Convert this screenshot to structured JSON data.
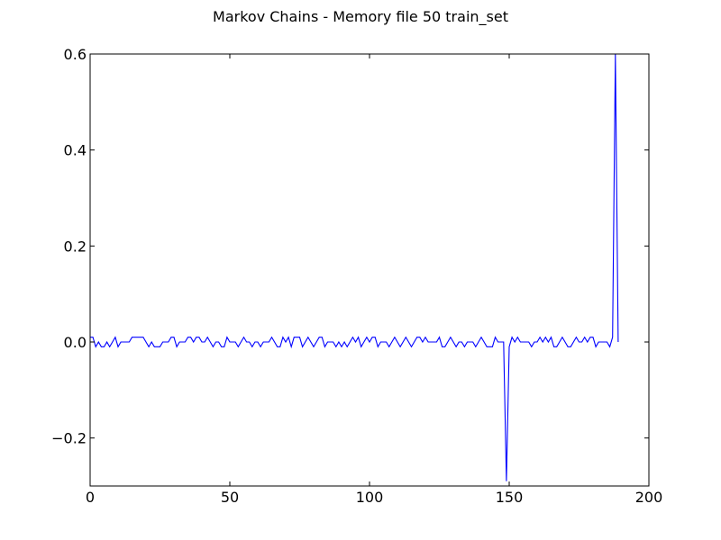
{
  "chart_data": {
    "type": "line",
    "title": "Markov Chains - Memory file 50 train_set",
    "xlabel": "",
    "ylabel": "",
    "xlim": [
      0,
      200
    ],
    "ylim": [
      -0.3,
      0.6
    ],
    "x_ticks": [
      0,
      50,
      100,
      150,
      200
    ],
    "y_ticks": [
      -0.2,
      0.0,
      0.2,
      0.4,
      0.6
    ],
    "x_tick_labels": [
      "0",
      "50",
      "100",
      "150",
      "200"
    ],
    "y_tick_labels": [
      "−0.2",
      "0.0",
      "0.2",
      "0.4",
      "0.6"
    ],
    "grid": false,
    "legend": "none",
    "colors": {
      "line": "#0000ff",
      "axes": "#000000",
      "background": "#ffffff"
    },
    "series": [
      {
        "values": [
          0.01,
          0.01,
          -0.01,
          0,
          -0.01,
          -0.01,
          0,
          -0.01,
          0,
          0.01,
          -0.01,
          0,
          0,
          0,
          0,
          0.01,
          0.01,
          0.01,
          0.01,
          0.01,
          0,
          -0.01,
          0,
          -0.01,
          -0.01,
          -0.01,
          0,
          0,
          0,
          0.01,
          0.01,
          -0.01,
          0,
          0,
          0,
          0.01,
          0.01,
          0,
          0.01,
          0.01,
          0,
          0,
          0.01,
          0,
          -0.01,
          0,
          0,
          -0.01,
          -0.01,
          0.01,
          0,
          0,
          0,
          -0.01,
          0,
          0.01,
          0,
          0,
          -0.01,
          0,
          0,
          -0.01,
          0,
          0,
          0,
          0.01,
          0,
          -0.01,
          -0.01,
          0.01,
          0,
          0.01,
          -0.01,
          0.01,
          0.01,
          0.01,
          -0.01,
          0,
          0.01,
          0,
          -0.01,
          0,
          0.01,
          0.01,
          -0.01,
          0,
          0,
          0,
          -0.01,
          0,
          -0.01,
          0,
          -0.01,
          0,
          0.01,
          0,
          0.01,
          -0.01,
          0,
          0.01,
          0,
          0.01,
          0.01,
          -0.01,
          0,
          0,
          0,
          -0.01,
          0,
          0.01,
          0,
          -0.01,
          0,
          0.01,
          0,
          -0.01,
          0,
          0.01,
          0.01,
          0,
          0.01,
          0,
          0,
          0,
          0,
          0.01,
          -0.01,
          -0.01,
          0,
          0.01,
          0,
          -0.01,
          0,
          0,
          -0.01,
          0,
          0,
          0,
          -0.01,
          0,
          0.01,
          0,
          -0.01,
          -0.01,
          -0.01,
          0.01,
          0,
          0,
          0,
          -0.29,
          -0.01,
          0.01,
          0,
          0.01,
          0,
          0,
          0,
          0,
          -0.01,
          0,
          0,
          0.01,
          0,
          0.01,
          0,
          0.01,
          -0.01,
          -0.01,
          0,
          0.01,
          0,
          -0.01,
          -0.01,
          0,
          0.01,
          0,
          0,
          0.01,
          0,
          0.01,
          0.01,
          -0.01,
          0,
          0,
          0,
          0,
          -0.01,
          0.01,
          0.6,
          0
        ]
      }
    ]
  }
}
